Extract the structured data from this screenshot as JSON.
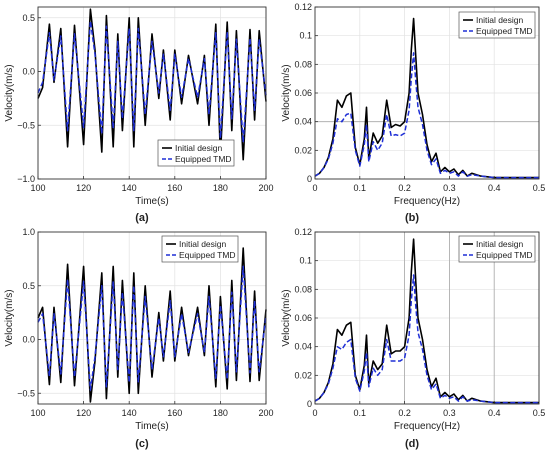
{
  "colors": {
    "initial": "#000000",
    "tmd": "#1f2fd6",
    "grid": "#e2e2e2",
    "axis": "#333333",
    "refline": "#a8a8a8"
  },
  "chart_data": [
    {
      "panel": "(a)",
      "type": "line",
      "xlabel": "Time(s)",
      "ylabel": "Velocity(m/s)",
      "xlim": [
        100,
        200
      ],
      "ylim": [
        -1.0,
        0.6
      ],
      "grid": true,
      "legend": "bottom-right",
      "xticks": [
        100,
        120,
        140,
        160,
        180,
        200
      ],
      "yticks": [
        -1.0,
        -0.5,
        0.0,
        0.5
      ],
      "ytick_labels": [
        "−1.0",
        "−0.5",
        "0.0",
        "0.5"
      ],
      "series": [
        {
          "name": "Initial design",
          "style": "solid",
          "x": [
            100,
            102,
            105,
            107,
            110,
            113,
            116,
            120,
            123,
            125,
            128,
            130,
            133,
            135,
            137,
            140,
            142,
            144,
            147,
            150,
            153,
            155,
            158,
            160,
            163,
            166,
            170,
            173,
            175,
            178,
            180,
            183,
            185,
            187,
            190,
            193,
            195,
            197,
            200
          ],
          "y": [
            -0.25,
            -0.15,
            0.44,
            -0.1,
            0.4,
            -0.7,
            0.43,
            -0.68,
            0.58,
            0.2,
            -0.75,
            0.52,
            -0.7,
            0.35,
            -0.55,
            0.5,
            -0.7,
            0.5,
            -0.5,
            0.35,
            -0.25,
            0.2,
            -0.45,
            0.2,
            -0.3,
            0.15,
            -0.3,
            0.15,
            -0.5,
            0.44,
            -0.78,
            0.46,
            -0.55,
            0.38,
            -0.82,
            0.39,
            -0.45,
            0.38,
            -0.28
          ]
        },
        {
          "name": "Equipped TMD",
          "style": "dashed",
          "x": [
            100,
            102,
            105,
            107,
            110,
            113,
            116,
            120,
            123,
            125,
            128,
            130,
            133,
            135,
            137,
            140,
            142,
            144,
            147,
            150,
            153,
            155,
            158,
            160,
            163,
            166,
            170,
            173,
            175,
            178,
            180,
            183,
            185,
            187,
            190,
            193,
            195,
            197,
            200
          ],
          "y": [
            -0.2,
            -0.1,
            0.36,
            -0.08,
            0.33,
            -0.55,
            0.35,
            -0.52,
            0.47,
            0.16,
            -0.58,
            0.42,
            -0.53,
            0.28,
            -0.44,
            0.4,
            -0.55,
            0.4,
            -0.4,
            0.28,
            -0.2,
            0.16,
            -0.36,
            0.16,
            -0.24,
            0.12,
            -0.24,
            0.12,
            -0.4,
            0.36,
            -0.62,
            0.37,
            -0.44,
            0.3,
            -0.66,
            0.31,
            -0.36,
            0.3,
            -0.22
          ]
        }
      ]
    },
    {
      "panel": "(b)",
      "type": "line",
      "xlabel": "Frequency(Hz)",
      "ylabel": "Velocity(m/s)",
      "xlim": [
        0,
        0.5
      ],
      "ylim": [
        0,
        0.12
      ],
      "grid": true,
      "legend": "top-right",
      "xticks": [
        0,
        0.1,
        0.2,
        0.3,
        0.4,
        0.5
      ],
      "yticks": [
        0,
        0.02,
        0.04,
        0.06,
        0.08,
        0.1,
        0.12
      ],
      "hlines": [
        0.04
      ],
      "vlines": [],
      "series": [
        {
          "name": "Initial design",
          "style": "solid",
          "x": [
            0,
            0.01,
            0.02,
            0.03,
            0.04,
            0.05,
            0.06,
            0.07,
            0.08,
            0.09,
            0.1,
            0.11,
            0.115,
            0.12,
            0.13,
            0.14,
            0.15,
            0.16,
            0.17,
            0.18,
            0.19,
            0.2,
            0.21,
            0.215,
            0.22,
            0.225,
            0.23,
            0.24,
            0.25,
            0.26,
            0.27,
            0.28,
            0.29,
            0.3,
            0.31,
            0.32,
            0.33,
            0.34,
            0.35,
            0.37,
            0.4,
            0.45,
            0.5
          ],
          "y": [
            0.002,
            0.004,
            0.008,
            0.015,
            0.028,
            0.055,
            0.05,
            0.058,
            0.06,
            0.022,
            0.01,
            0.028,
            0.05,
            0.014,
            0.032,
            0.025,
            0.03,
            0.055,
            0.036,
            0.038,
            0.037,
            0.04,
            0.06,
            0.09,
            0.112,
            0.085,
            0.06,
            0.045,
            0.024,
            0.012,
            0.018,
            0.005,
            0.008,
            0.005,
            0.007,
            0.003,
            0.006,
            0.002,
            0.004,
            0.002,
            0.001,
            0.001,
            0.001
          ]
        },
        {
          "name": "Equipped TMD",
          "style": "dashed",
          "x": [
            0,
            0.01,
            0.02,
            0.03,
            0.04,
            0.05,
            0.06,
            0.07,
            0.08,
            0.09,
            0.1,
            0.11,
            0.115,
            0.12,
            0.13,
            0.14,
            0.15,
            0.16,
            0.17,
            0.18,
            0.19,
            0.2,
            0.21,
            0.215,
            0.22,
            0.225,
            0.23,
            0.24,
            0.25,
            0.26,
            0.27,
            0.28,
            0.29,
            0.3,
            0.31,
            0.32,
            0.33,
            0.34,
            0.35,
            0.37,
            0.4,
            0.45,
            0.5
          ],
          "y": [
            0.002,
            0.004,
            0.008,
            0.014,
            0.025,
            0.042,
            0.04,
            0.045,
            0.046,
            0.02,
            0.009,
            0.024,
            0.038,
            0.012,
            0.026,
            0.02,
            0.025,
            0.045,
            0.03,
            0.031,
            0.03,
            0.032,
            0.048,
            0.07,
            0.088,
            0.068,
            0.05,
            0.038,
            0.02,
            0.01,
            0.014,
            0.004,
            0.006,
            0.004,
            0.005,
            0.002,
            0.005,
            0.002,
            0.003,
            0.002,
            0.001,
            0.001,
            0.001
          ]
        }
      ]
    },
    {
      "panel": "(c)",
      "type": "line",
      "xlabel": "Time(s)",
      "ylabel": "Velocity(m/s)",
      "xlim": [
        100,
        200
      ],
      "ylim": [
        -0.6,
        1.0
      ],
      "grid": true,
      "legend": "top-right",
      "xticks": [
        100,
        120,
        140,
        160,
        180,
        200
      ],
      "yticks": [
        -0.5,
        0.0,
        0.5,
        1.0
      ],
      "ytick_labels": [
        "−0.5",
        "0.0",
        "0.5",
        "1.0"
      ],
      "series": [
        {
          "name": "Initial design",
          "style": "solid",
          "x": [
            100,
            102,
            105,
            107,
            110,
            113,
            116,
            120,
            123,
            125,
            128,
            130,
            133,
            135,
            137,
            140,
            142,
            144,
            147,
            150,
            153,
            155,
            158,
            160,
            163,
            166,
            170,
            173,
            175,
            178,
            180,
            183,
            185,
            187,
            190,
            193,
            195,
            197,
            200
          ],
          "y": [
            0.2,
            0.3,
            -0.42,
            0.3,
            -0.4,
            0.7,
            -0.43,
            0.68,
            -0.58,
            -0.2,
            0.62,
            -0.55,
            0.68,
            -0.35,
            0.55,
            -0.5,
            0.62,
            -0.5,
            0.5,
            -0.35,
            0.25,
            -0.2,
            0.45,
            -0.2,
            0.3,
            -0.15,
            0.3,
            -0.15,
            0.5,
            -0.44,
            0.4,
            -0.46,
            0.55,
            -0.38,
            0.85,
            -0.39,
            0.45,
            -0.38,
            0.28
          ]
        },
        {
          "name": "Equipped TMD",
          "style": "dashed",
          "x": [
            100,
            102,
            105,
            107,
            110,
            113,
            116,
            120,
            123,
            125,
            128,
            130,
            133,
            135,
            137,
            140,
            142,
            144,
            147,
            150,
            153,
            155,
            158,
            160,
            163,
            166,
            170,
            173,
            175,
            178,
            180,
            183,
            185,
            187,
            190,
            193,
            195,
            197,
            200
          ],
          "y": [
            0.16,
            0.24,
            -0.34,
            0.24,
            -0.32,
            0.56,
            -0.35,
            0.54,
            -0.47,
            -0.16,
            0.5,
            -0.44,
            0.54,
            -0.28,
            0.44,
            -0.4,
            0.5,
            -0.4,
            0.4,
            -0.28,
            0.2,
            -0.16,
            0.36,
            -0.16,
            0.24,
            -0.12,
            0.24,
            -0.12,
            0.4,
            -0.36,
            0.32,
            -0.37,
            0.44,
            -0.3,
            0.68,
            -0.31,
            0.36,
            -0.3,
            0.22
          ]
        }
      ]
    },
    {
      "panel": "(d)",
      "type": "line",
      "xlabel": "Frequency(Hz)",
      "ylabel": "Velocity(m/s)",
      "xlim": [
        0,
        0.5
      ],
      "ylim": [
        0,
        0.12
      ],
      "grid": true,
      "legend": "top-right",
      "xticks": [
        0,
        0.1,
        0.2,
        0.3,
        0.4,
        0.5
      ],
      "yticks": [
        0,
        0.02,
        0.04,
        0.06,
        0.08,
        0.1,
        0.12
      ],
      "hlines": [],
      "vlines": [
        0.2,
        0.3,
        0.4,
        0.5
      ],
      "series": [
        {
          "name": "Initial design",
          "style": "solid",
          "x": [
            0,
            0.01,
            0.02,
            0.03,
            0.04,
            0.05,
            0.06,
            0.07,
            0.08,
            0.09,
            0.1,
            0.11,
            0.115,
            0.12,
            0.13,
            0.14,
            0.15,
            0.16,
            0.17,
            0.18,
            0.19,
            0.2,
            0.21,
            0.215,
            0.22,
            0.225,
            0.23,
            0.24,
            0.25,
            0.26,
            0.27,
            0.28,
            0.29,
            0.3,
            0.31,
            0.32,
            0.33,
            0.34,
            0.35,
            0.37,
            0.4,
            0.45,
            0.5
          ],
          "y": [
            0.002,
            0.004,
            0.008,
            0.015,
            0.028,
            0.052,
            0.048,
            0.055,
            0.057,
            0.02,
            0.01,
            0.027,
            0.048,
            0.014,
            0.03,
            0.024,
            0.028,
            0.055,
            0.035,
            0.037,
            0.037,
            0.04,
            0.06,
            0.092,
            0.115,
            0.085,
            0.06,
            0.045,
            0.024,
            0.012,
            0.018,
            0.005,
            0.008,
            0.005,
            0.007,
            0.003,
            0.006,
            0.002,
            0.004,
            0.002,
            0.001,
            0.001,
            0.001
          ]
        },
        {
          "name": "Equipped TMD",
          "style": "dashed",
          "x": [
            0,
            0.01,
            0.02,
            0.03,
            0.04,
            0.05,
            0.06,
            0.07,
            0.08,
            0.09,
            0.1,
            0.11,
            0.115,
            0.12,
            0.13,
            0.14,
            0.15,
            0.16,
            0.17,
            0.18,
            0.19,
            0.2,
            0.21,
            0.215,
            0.22,
            0.225,
            0.23,
            0.24,
            0.25,
            0.26,
            0.27,
            0.28,
            0.29,
            0.3,
            0.31,
            0.32,
            0.33,
            0.34,
            0.35,
            0.37,
            0.4,
            0.45,
            0.5
          ],
          "y": [
            0.002,
            0.004,
            0.008,
            0.014,
            0.025,
            0.04,
            0.038,
            0.043,
            0.045,
            0.018,
            0.009,
            0.023,
            0.036,
            0.012,
            0.025,
            0.02,
            0.024,
            0.045,
            0.03,
            0.03,
            0.03,
            0.032,
            0.048,
            0.072,
            0.09,
            0.068,
            0.05,
            0.038,
            0.02,
            0.01,
            0.014,
            0.004,
            0.006,
            0.004,
            0.005,
            0.002,
            0.005,
            0.002,
            0.003,
            0.002,
            0.001,
            0.001,
            0.001
          ]
        }
      ]
    }
  ]
}
